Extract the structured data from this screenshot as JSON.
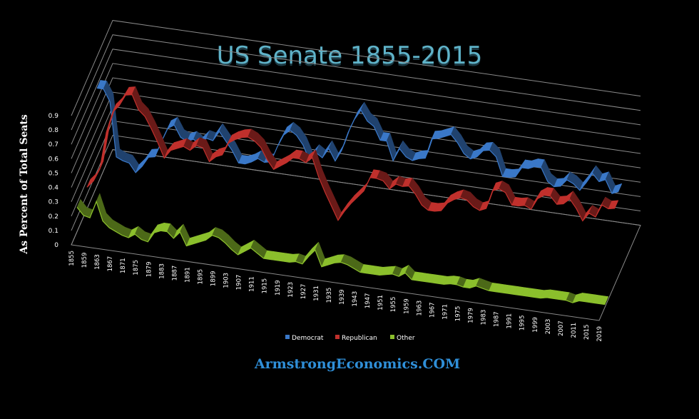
{
  "title": "US Senate 1855-2015",
  "footer_text": "ArmstrongEconomics.COM",
  "chart_data": {
    "type": "line",
    "title": "US Senate 1855-2015",
    "xlabel": "",
    "ylabel": "As Percent of Total Seats",
    "ylim": [
      0,
      0.9
    ],
    "y_ticks": [
      "0",
      "0.1",
      "0.2",
      "0.3",
      "0.4",
      "0.5",
      "0.6",
      "0.7",
      "0.8",
      "0.9"
    ],
    "x_ticks": [
      "1855",
      "1859",
      "1863",
      "1867",
      "1871",
      "1875",
      "1879",
      "1883",
      "1887",
      "1891",
      "1895",
      "1899",
      "1903",
      "1907",
      "1911",
      "1915",
      "1919",
      "1923",
      "1927",
      "1931",
      "1935",
      "1939",
      "1943",
      "1947",
      "1951",
      "1955",
      "1959",
      "1963",
      "1967",
      "1971",
      "1975",
      "1979",
      "1983",
      "1987",
      "1991",
      "1995",
      "1999",
      "2003",
      "2007",
      "2011",
      "2015",
      "2019"
    ],
    "grid": true,
    "legend_position": "bottom",
    "style": "3d ribbon line",
    "series": [
      {
        "name": "Democrat",
        "color": "#3a78c8",
        "x": [
          1855,
          1857,
          1859,
          1861,
          1863,
          1865,
          1867,
          1869,
          1871,
          1873,
          1875,
          1877,
          1879,
          1881,
          1883,
          1885,
          1887,
          1889,
          1891,
          1893,
          1895,
          1897,
          1899,
          1901,
          1903,
          1905,
          1907,
          1909,
          1911,
          1913,
          1915,
          1917,
          1919,
          1921,
          1923,
          1925,
          1927,
          1929,
          1931,
          1933,
          1935,
          1937,
          1939,
          1941,
          1943,
          1945,
          1947,
          1949,
          1951,
          1953,
          1955,
          1957,
          1959,
          1961,
          1963,
          1965,
          1967,
          1969,
          1971,
          1973,
          1975,
          1977,
          1979,
          1981,
          1983,
          1985,
          1987,
          1989,
          1991,
          1993,
          1995,
          1997,
          1999,
          2001,
          2003,
          2005,
          2007,
          2009,
          2011,
          2013,
          2015,
          2017
        ],
        "values": [
          0.68,
          0.68,
          0.6,
          0.22,
          0.2,
          0.19,
          0.13,
          0.18,
          0.25,
          0.26,
          0.37,
          0.47,
          0.5,
          0.42,
          0.4,
          0.42,
          0.39,
          0.44,
          0.43,
          0.5,
          0.44,
          0.38,
          0.3,
          0.3,
          0.32,
          0.35,
          0.33,
          0.34,
          0.45,
          0.54,
          0.58,
          0.55,
          0.49,
          0.39,
          0.45,
          0.42,
          0.49,
          0.41,
          0.49,
          0.62,
          0.72,
          0.79,
          0.72,
          0.69,
          0.6,
          0.6,
          0.47,
          0.56,
          0.51,
          0.49,
          0.51,
          0.52,
          0.66,
          0.67,
          0.69,
          0.71,
          0.66,
          0.59,
          0.56,
          0.58,
          0.63,
          0.64,
          0.6,
          0.47,
          0.47,
          0.48,
          0.55,
          0.55,
          0.57,
          0.57,
          0.48,
          0.45,
          0.46,
          0.51,
          0.49,
          0.45,
          0.51,
          0.58,
          0.53,
          0.55,
          0.46,
          0.48
        ]
      },
      {
        "name": "Republican",
        "color": "#c0302c",
        "x": [
          1855,
          1857,
          1859,
          1861,
          1863,
          1865,
          1867,
          1869,
          1871,
          1873,
          1875,
          1877,
          1879,
          1881,
          1883,
          1885,
          1887,
          1889,
          1891,
          1893,
          1895,
          1897,
          1899,
          1901,
          1903,
          1905,
          1907,
          1909,
          1911,
          1913,
          1915,
          1917,
          1919,
          1921,
          1923,
          1925,
          1927,
          1929,
          1931,
          1933,
          1935,
          1937,
          1939,
          1941,
          1943,
          1945,
          1947,
          1949,
          1951,
          1953,
          1955,
          1957,
          1959,
          1961,
          1963,
          1965,
          1967,
          1969,
          1971,
          1973,
          1975,
          1977,
          1979,
          1981,
          1983,
          1985,
          1987,
          1989,
          1991,
          1993,
          1995,
          1997,
          1999,
          2001,
          2003,
          2005,
          2007,
          2009,
          2011,
          2013,
          2015,
          2017,
          2019
        ],
        "values": [
          0.15,
          0.2,
          0.29,
          0.55,
          0.7,
          0.75,
          0.83,
          0.84,
          0.74,
          0.7,
          0.62,
          0.53,
          0.43,
          0.49,
          0.51,
          0.53,
          0.51,
          0.55,
          0.54,
          0.45,
          0.49,
          0.51,
          0.6,
          0.63,
          0.65,
          0.66,
          0.64,
          0.6,
          0.52,
          0.46,
          0.49,
          0.52,
          0.56,
          0.56,
          0.54,
          0.58,
          0.45,
          0.35,
          0.26,
          0.17,
          0.24,
          0.3,
          0.35,
          0.4,
          0.5,
          0.5,
          0.49,
          0.44,
          0.48,
          0.47,
          0.48,
          0.43,
          0.36,
          0.33,
          0.33,
          0.34,
          0.4,
          0.43,
          0.45,
          0.44,
          0.4,
          0.38,
          0.4,
          0.53,
          0.55,
          0.53,
          0.45,
          0.45,
          0.46,
          0.44,
          0.52,
          0.55,
          0.55,
          0.5,
          0.51,
          0.55,
          0.49,
          0.41,
          0.47,
          0.45,
          0.54,
          0.52,
          0.53
        ]
      },
      {
        "name": "Other",
        "color": "#8bbf2c",
        "x": [
          1855,
          1857,
          1859,
          1861,
          1863,
          1865,
          1867,
          1869,
          1871,
          1873,
          1875,
          1877,
          1879,
          1881,
          1883,
          1885,
          1887,
          1889,
          1891,
          1893,
          1895,
          1897,
          1899,
          1901,
          1903,
          1905,
          1907,
          1909,
          1911,
          1913,
          1915,
          1917,
          1919,
          1921,
          1923,
          1925,
          1927,
          1929,
          1931,
          1933,
          1935,
          1937,
          1939,
          1941,
          1943,
          1945,
          1947,
          1949,
          1951,
          1953,
          1955,
          1957,
          1959,
          1961,
          1963,
          1965,
          1967,
          1969,
          1971,
          1973,
          1975,
          1977,
          1979,
          1981,
          1983,
          1985,
          1987,
          1989,
          1991,
          1993,
          1995,
          1997,
          1999,
          2001,
          2003,
          2005,
          2007,
          2009,
          2011,
          2013,
          2015,
          2017,
          2019
        ],
        "values": [
          0.17,
          0.12,
          0.11,
          0.23,
          0.1,
          0.06,
          0.04,
          0.02,
          0.01,
          0.04,
          0.01,
          0.0,
          0.07,
          0.09,
          0.09,
          0.05,
          0.1,
          0.01,
          0.03,
          0.05,
          0.07,
          0.11,
          0.1,
          0.07,
          0.03,
          0.0,
          0.03,
          0.06,
          0.03,
          0.0,
          0.0,
          0.0,
          0.0,
          0.0,
          0.01,
          0.0,
          0.06,
          0.11,
          0.0,
          0.02,
          0.04,
          0.05,
          0.04,
          0.02,
          0.0,
          0.0,
          0.0,
          0.0,
          0.01,
          0.02,
          0.01,
          0.04,
          0.0,
          0.0,
          0.0,
          0.0,
          0.0,
          0.0,
          0.01,
          0.01,
          0.0,
          0.0,
          0.02,
          0.01,
          0.0,
          0.0,
          0.0,
          0.0,
          0.0,
          0.0,
          0.0,
          0.0,
          0.0,
          0.01,
          0.01,
          0.01,
          0.01,
          0.0,
          0.02,
          0.02,
          0.02,
          0.02,
          0.02
        ]
      }
    ]
  }
}
